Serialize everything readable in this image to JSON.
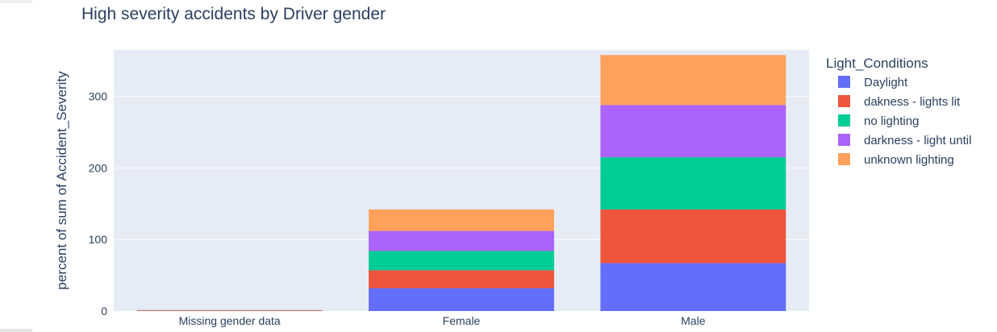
{
  "chart_data": {
    "type": "bar",
    "stacked": true,
    "title": "High severity accidents by Driver gender",
    "xlabel": "",
    "ylabel": "percent of sum of Accident_Severity",
    "categories": [
      "Missing gender data",
      "Female",
      "Male"
    ],
    "ylim": [
      0,
      365
    ],
    "yticks": [
      0,
      100,
      200,
      300
    ],
    "grid": true,
    "legend": {
      "title": "Light_Conditions",
      "placement": "right"
    },
    "series": [
      {
        "name": "Daylight",
        "color": "#636efa",
        "values": [
          0.3,
          32,
          67
        ]
      },
      {
        "name": "dakness - lights lit",
        "color": "#ef553b",
        "values": [
          0.8,
          25,
          75
        ]
      },
      {
        "name": "no lighting",
        "color": "#00cc96",
        "values": [
          0.2,
          27,
          73
        ]
      },
      {
        "name": "darkness - light until",
        "color": "#ab63fa",
        "values": [
          0.1,
          28,
          73
        ]
      },
      {
        "name": "unknown lighting",
        "color": "#ffa15a",
        "values": [
          0.1,
          30,
          70
        ]
      }
    ]
  },
  "colors": {
    "plot_bg": "#e5ecf6",
    "grid": "#ffffff",
    "text": "#2a3f5f"
  }
}
